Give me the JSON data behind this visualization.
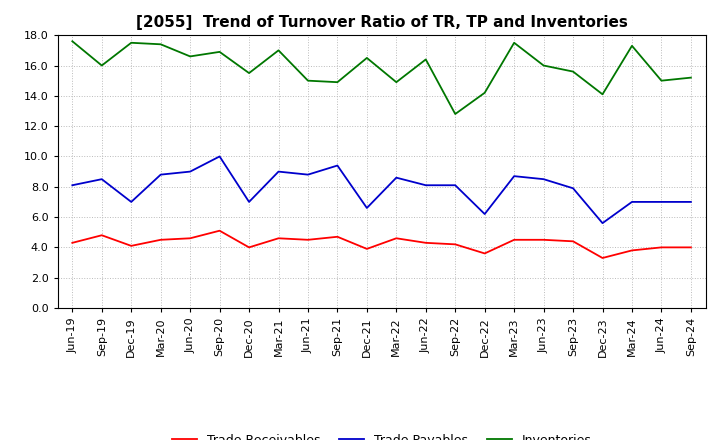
{
  "title": "[2055]  Trend of Turnover Ratio of TR, TP and Inventories",
  "x_labels": [
    "Jun-19",
    "Sep-19",
    "Dec-19",
    "Mar-20",
    "Jun-20",
    "Sep-20",
    "Dec-20",
    "Mar-21",
    "Jun-21",
    "Sep-21",
    "Dec-21",
    "Mar-22",
    "Jun-22",
    "Sep-22",
    "Dec-22",
    "Mar-23",
    "Jun-23",
    "Sep-23",
    "Dec-23",
    "Mar-24",
    "Jun-24",
    "Sep-24"
  ],
  "trade_receivables": [
    4.3,
    4.8,
    4.1,
    4.5,
    4.6,
    5.1,
    4.0,
    4.6,
    4.5,
    4.7,
    3.9,
    4.6,
    4.3,
    4.2,
    3.6,
    4.5,
    4.5,
    4.4,
    3.3,
    3.8,
    4.0,
    4.0
  ],
  "trade_payables": [
    8.1,
    8.5,
    7.0,
    8.8,
    9.0,
    10.0,
    7.0,
    9.0,
    8.8,
    9.4,
    6.6,
    8.6,
    8.1,
    8.1,
    6.2,
    8.7,
    8.5,
    7.9,
    5.6,
    7.0,
    7.0,
    7.0
  ],
  "inventories": [
    17.6,
    16.0,
    17.5,
    17.4,
    16.6,
    16.9,
    15.5,
    17.0,
    15.0,
    14.9,
    16.5,
    14.9,
    16.4,
    12.8,
    14.2,
    17.5,
    16.0,
    15.6,
    14.1,
    17.3,
    15.0,
    15.2
  ],
  "colors": {
    "trade_receivables": "#FF0000",
    "trade_payables": "#0000CC",
    "inventories": "#007700"
  },
  "legend_labels": [
    "Trade Receivables",
    "Trade Payables",
    "Inventories"
  ],
  "ylim": [
    0.0,
    18.0
  ],
  "yticks": [
    0.0,
    2.0,
    4.0,
    6.0,
    8.0,
    10.0,
    12.0,
    14.0,
    16.0,
    18.0
  ],
  "background_color": "#FFFFFF",
  "grid_color": "#BBBBBB",
  "title_fontsize": 11,
  "axis_fontsize": 8,
  "legend_fontsize": 9
}
